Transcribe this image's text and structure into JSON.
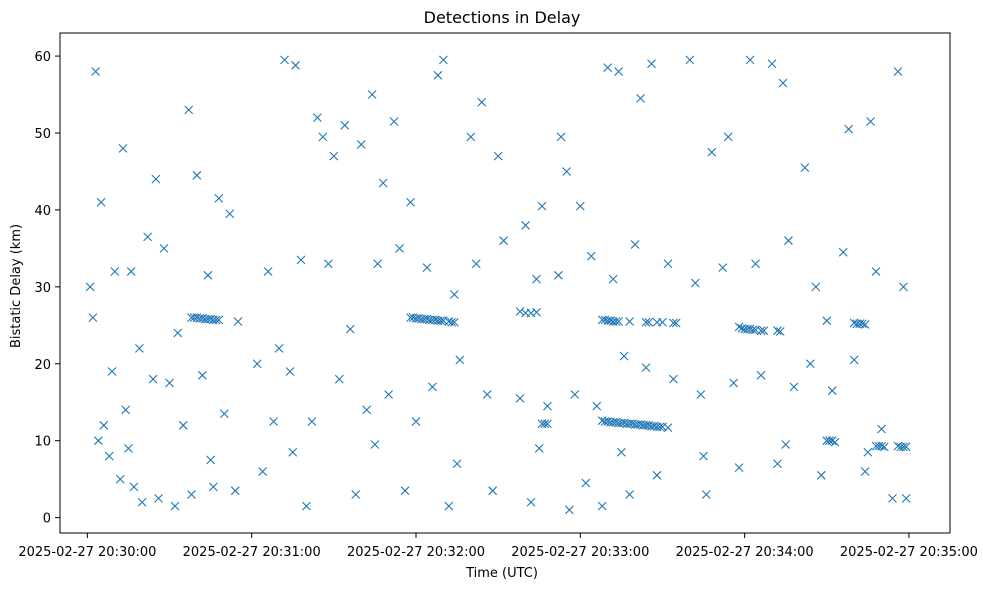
{
  "chart_data": {
    "type": "scatter",
    "title": "Detections in Delay",
    "xlabel": "Time (UTC)",
    "ylabel": "Bistatic Delay (km)",
    "marker": "x",
    "color": "#1f77b4",
    "grid": false,
    "x_unit": "time (HH:MM:SS on 2025-02-27)",
    "xlim": [
      "20:29:50",
      "20:35:15"
    ],
    "ylim": [
      -2,
      63
    ],
    "x_ticks": [
      "20:30:00",
      "20:31:00",
      "20:32:00",
      "20:33:00",
      "20:34:00",
      "20:35:00"
    ],
    "x_tick_labels": [
      "2025-02-27 20:30:00",
      "2025-02-27 20:31:00",
      "2025-02-27 20:32:00",
      "2025-02-27 20:33:00",
      "2025-02-27 20:34:00",
      "2025-02-27 20:35:00"
    ],
    "y_ticks": [
      0,
      10,
      20,
      30,
      40,
      50,
      60
    ],
    "y_tick_labels": [
      "0",
      "10",
      "20",
      "30",
      "40",
      "50",
      "60"
    ],
    "points": [
      [
        "20:30:03",
        58.0
      ],
      [
        "20:30:13",
        48.0
      ],
      [
        "20:30:25",
        44.0
      ],
      [
        "20:30:37",
        53.0
      ],
      [
        "20:30:40",
        44.5
      ],
      [
        "20:30:48",
        41.5
      ],
      [
        "20:30:52",
        39.5
      ],
      [
        "20:31:12",
        59.5
      ],
      [
        "20:31:16",
        58.8
      ],
      [
        "20:31:24",
        52.0
      ],
      [
        "20:31:26",
        49.5
      ],
      [
        "20:31:30",
        47.0
      ],
      [
        "20:31:34",
        51.0
      ],
      [
        "20:31:40",
        48.5
      ],
      [
        "20:31:44",
        55.0
      ],
      [
        "20:31:48",
        43.5
      ],
      [
        "20:31:52",
        51.5
      ],
      [
        "20:31:58",
        41.0
      ],
      [
        "20:32:08",
        57.5
      ],
      [
        "20:32:10",
        59.5
      ],
      [
        "20:32:20",
        49.5
      ],
      [
        "20:32:24",
        54.0
      ],
      [
        "20:32:30",
        47.0
      ],
      [
        "20:32:40",
        38.0
      ],
      [
        "20:32:46",
        40.5
      ],
      [
        "20:32:53",
        49.5
      ],
      [
        "20:32:55",
        45.0
      ],
      [
        "20:33:00",
        40.5
      ],
      [
        "20:33:10",
        58.5
      ],
      [
        "20:33:14",
        58.0
      ],
      [
        "20:33:22",
        54.5
      ],
      [
        "20:33:26",
        59.0
      ],
      [
        "20:33:40",
        59.5
      ],
      [
        "20:33:48",
        47.5
      ],
      [
        "20:33:54",
        49.5
      ],
      [
        "20:34:02",
        59.5
      ],
      [
        "20:34:10",
        59.0
      ],
      [
        "20:34:14",
        56.5
      ],
      [
        "20:34:22",
        45.5
      ],
      [
        "20:34:38",
        50.5
      ],
      [
        "20:34:46",
        51.5
      ],
      [
        "20:34:56",
        58.0
      ],
      [
        "20:30:01",
        30.0
      ],
      [
        "20:30:05",
        41.0
      ],
      [
        "20:30:10",
        32.0
      ],
      [
        "20:30:16",
        32.0
      ],
      [
        "20:30:22",
        36.5
      ],
      [
        "20:30:28",
        35.0
      ],
      [
        "20:30:33",
        24.0
      ],
      [
        "20:30:44",
        31.5
      ],
      [
        "20:30:55",
        25.5
      ],
      [
        "20:31:06",
        32.0
      ],
      [
        "20:31:10",
        22.0
      ],
      [
        "20:31:18",
        33.5
      ],
      [
        "20:31:28",
        33.0
      ],
      [
        "20:31:36",
        24.5
      ],
      [
        "20:31:46",
        33.0
      ],
      [
        "20:31:54",
        35.0
      ],
      [
        "20:32:04",
        32.5
      ],
      [
        "20:32:14",
        29.0
      ],
      [
        "20:32:22",
        33.0
      ],
      [
        "20:32:32",
        36.0
      ],
      [
        "20:32:44",
        31.0
      ],
      [
        "20:32:52",
        31.5
      ],
      [
        "20:33:04",
        34.0
      ],
      [
        "20:33:12",
        31.0
      ],
      [
        "20:33:20",
        35.5
      ],
      [
        "20:33:32",
        33.0
      ],
      [
        "20:33:42",
        30.5
      ],
      [
        "20:33:52",
        32.5
      ],
      [
        "20:34:04",
        33.0
      ],
      [
        "20:34:16",
        36.0
      ],
      [
        "20:34:26",
        30.0
      ],
      [
        "20:34:36",
        34.5
      ],
      [
        "20:34:48",
        32.0
      ],
      [
        "20:34:58",
        30.0
      ],
      [
        "20:30:02",
        26.0
      ],
      [
        "20:30:06",
        12.0
      ],
      [
        "20:30:09",
        19.0
      ],
      [
        "20:30:14",
        14.0
      ],
      [
        "20:30:19",
        22.0
      ],
      [
        "20:30:24",
        18.0
      ],
      [
        "20:30:30",
        17.5
      ],
      [
        "20:30:35",
        12.0
      ],
      [
        "20:30:42",
        18.5
      ],
      [
        "20:30:50",
        13.5
      ],
      [
        "20:31:02",
        20.0
      ],
      [
        "20:31:08",
        12.5
      ],
      [
        "20:31:14",
        19.0
      ],
      [
        "20:31:22",
        12.5
      ],
      [
        "20:31:32",
        18.0
      ],
      [
        "20:31:42",
        14.0
      ],
      [
        "20:31:50",
        16.0
      ],
      [
        "20:32:00",
        12.5
      ],
      [
        "20:32:06",
        17.0
      ],
      [
        "20:32:16",
        20.5
      ],
      [
        "20:32:26",
        16.0
      ],
      [
        "20:32:38",
        15.5
      ],
      [
        "20:32:48",
        14.5
      ],
      [
        "20:32:58",
        16.0
      ],
      [
        "20:33:06",
        14.5
      ],
      [
        "20:33:16",
        21.0
      ],
      [
        "20:33:24",
        19.5
      ],
      [
        "20:33:34",
        18.0
      ],
      [
        "20:33:44",
        16.0
      ],
      [
        "20:33:56",
        17.5
      ],
      [
        "20:34:06",
        18.5
      ],
      [
        "20:34:18",
        17.0
      ],
      [
        "20:34:24",
        20.0
      ],
      [
        "20:34:32",
        16.5
      ],
      [
        "20:34:40",
        20.5
      ],
      [
        "20:34:50",
        11.5
      ],
      [
        "20:30:04",
        10.0
      ],
      [
        "20:30:08",
        8.0
      ],
      [
        "20:30:12",
        5.0
      ],
      [
        "20:30:17",
        4.0
      ],
      [
        "20:30:20",
        2.0
      ],
      [
        "20:30:26",
        2.5
      ],
      [
        "20:30:32",
        1.5
      ],
      [
        "20:30:38",
        3.0
      ],
      [
        "20:30:46",
        4.0
      ],
      [
        "20:30:54",
        3.5
      ],
      [
        "20:31:04",
        6.0
      ],
      [
        "20:31:20",
        1.5
      ],
      [
        "20:31:38",
        3.0
      ],
      [
        "20:31:56",
        3.5
      ],
      [
        "20:32:12",
        1.5
      ],
      [
        "20:32:28",
        3.5
      ],
      [
        "20:32:42",
        2.0
      ],
      [
        "20:32:56",
        1.0
      ],
      [
        "20:33:02",
        4.5
      ],
      [
        "20:33:08",
        1.5
      ],
      [
        "20:33:18",
        3.0
      ],
      [
        "20:33:28",
        5.5
      ],
      [
        "20:33:46",
        3.0
      ],
      [
        "20:33:58",
        6.5
      ],
      [
        "20:34:12",
        7.0
      ],
      [
        "20:34:28",
        5.5
      ],
      [
        "20:34:44",
        6.0
      ],
      [
        "20:34:54",
        2.5
      ],
      [
        "20:34:59",
        2.5
      ],
      [
        "20:30:15",
        9.0
      ],
      [
        "20:30:45",
        7.5
      ],
      [
        "20:31:15",
        8.5
      ],
      [
        "20:31:45",
        9.5
      ],
      [
        "20:32:15",
        7.0
      ],
      [
        "20:32:45",
        9.0
      ],
      [
        "20:33:15",
        8.5
      ],
      [
        "20:33:45",
        8.0
      ],
      [
        "20:34:15",
        9.5
      ],
      [
        "20:34:45",
        8.5
      ],
      [
        "20:30:38",
        26.0
      ],
      [
        "20:30:39",
        26.0
      ],
      [
        "20:30:40",
        26.0
      ],
      [
        "20:30:41",
        25.9
      ],
      [
        "20:30:42",
        25.9
      ],
      [
        "20:30:43",
        25.8
      ],
      [
        "20:30:44",
        25.8
      ],
      [
        "20:30:45",
        25.8
      ],
      [
        "20:30:46",
        25.7
      ],
      [
        "20:30:47",
        25.7
      ],
      [
        "20:30:48",
        25.7
      ],
      [
        "20:31:58",
        26.0
      ],
      [
        "20:31:59",
        26.0
      ],
      [
        "20:32:00",
        25.9
      ],
      [
        "20:32:01",
        25.9
      ],
      [
        "20:32:02",
        25.8
      ],
      [
        "20:32:03",
        25.8
      ],
      [
        "20:32:04",
        25.8
      ],
      [
        "20:32:05",
        25.7
      ],
      [
        "20:32:06",
        25.7
      ],
      [
        "20:32:07",
        25.7
      ],
      [
        "20:32:08",
        25.6
      ],
      [
        "20:32:09",
        25.6
      ],
      [
        "20:32:10",
        25.6
      ],
      [
        "20:32:12",
        25.5
      ],
      [
        "20:32:13",
        25.4
      ],
      [
        "20:32:14",
        25.4
      ],
      [
        "20:32:38",
        26.8
      ],
      [
        "20:32:40",
        26.6
      ],
      [
        "20:32:42",
        26.6
      ],
      [
        "20:32:44",
        26.7
      ],
      [
        "20:33:08",
        25.7
      ],
      [
        "20:33:09",
        25.7
      ],
      [
        "20:33:10",
        25.6
      ],
      [
        "20:33:11",
        25.6
      ],
      [
        "20:33:12",
        25.5
      ],
      [
        "20:33:13",
        25.5
      ],
      [
        "20:33:14",
        25.5
      ],
      [
        "20:33:18",
        25.5
      ],
      [
        "20:33:24",
        25.4
      ],
      [
        "20:33:25",
        25.4
      ],
      [
        "20:33:28",
        25.4
      ],
      [
        "20:33:30",
        25.4
      ],
      [
        "20:33:34",
        25.3
      ],
      [
        "20:33:35",
        25.3
      ],
      [
        "20:33:58",
        24.8
      ],
      [
        "20:33:59",
        24.6
      ],
      [
        "20:34:00",
        24.5
      ],
      [
        "20:34:01",
        24.5
      ],
      [
        "20:34:02",
        24.5
      ],
      [
        "20:34:03",
        24.4
      ],
      [
        "20:34:04",
        24.4
      ],
      [
        "20:34:06",
        24.3
      ],
      [
        "20:34:07",
        24.3
      ],
      [
        "20:34:12",
        24.3
      ],
      [
        "20:34:13",
        24.2
      ],
      [
        "20:34:30",
        25.6
      ],
      [
        "20:34:40",
        25.3
      ],
      [
        "20:34:41",
        25.2
      ],
      [
        "20:34:42",
        25.2
      ],
      [
        "20:34:43",
        25.2
      ],
      [
        "20:34:44",
        25.1
      ],
      [
        "20:33:08",
        12.6
      ],
      [
        "20:33:09",
        12.5
      ],
      [
        "20:33:10",
        12.5
      ],
      [
        "20:33:11",
        12.4
      ],
      [
        "20:33:12",
        12.4
      ],
      [
        "20:33:13",
        12.4
      ],
      [
        "20:33:14",
        12.3
      ],
      [
        "20:33:15",
        12.3
      ],
      [
        "20:33:16",
        12.3
      ],
      [
        "20:33:17",
        12.2
      ],
      [
        "20:33:18",
        12.2
      ],
      [
        "20:33:19",
        12.2
      ],
      [
        "20:33:20",
        12.1
      ],
      [
        "20:33:21",
        12.1
      ],
      [
        "20:33:22",
        12.1
      ],
      [
        "20:33:23",
        12.0
      ],
      [
        "20:33:24",
        12.0
      ],
      [
        "20:33:25",
        12.0
      ],
      [
        "20:33:26",
        11.9
      ],
      [
        "20:33:27",
        11.9
      ],
      [
        "20:33:28",
        11.8
      ],
      [
        "20:33:29",
        11.8
      ],
      [
        "20:33:30",
        11.8
      ],
      [
        "20:33:32",
        11.7
      ],
      [
        "20:32:46",
        12.2
      ],
      [
        "20:32:47",
        12.2
      ],
      [
        "20:32:48",
        12.2
      ],
      [
        "20:34:30",
        10.0
      ],
      [
        "20:34:31",
        10.0
      ],
      [
        "20:34:32",
        10.0
      ],
      [
        "20:34:33",
        9.8
      ],
      [
        "20:34:48",
        9.3
      ],
      [
        "20:34:49",
        9.3
      ],
      [
        "20:34:50",
        9.3
      ],
      [
        "20:34:51",
        9.2
      ],
      [
        "20:34:56",
        9.3
      ],
      [
        "20:34:57",
        9.2
      ],
      [
        "20:34:58",
        9.2
      ],
      [
        "20:34:59",
        9.2
      ]
    ]
  }
}
